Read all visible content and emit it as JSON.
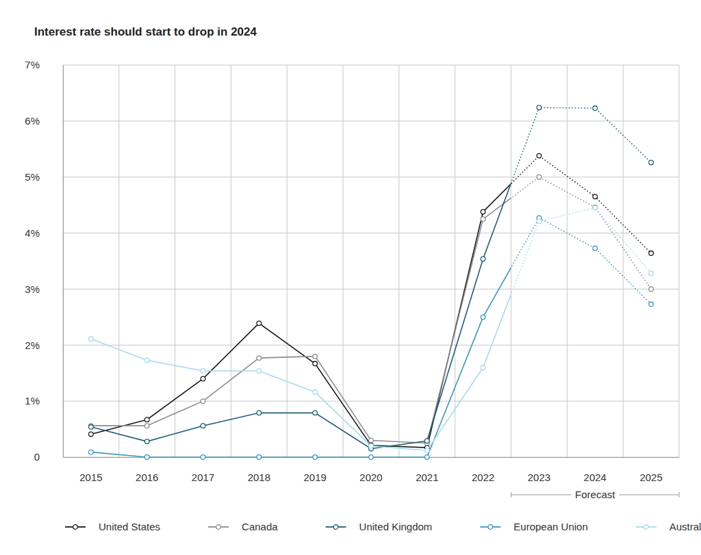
{
  "chart_data": {
    "type": "line",
    "title": "Interest rate should start to drop in 2024",
    "categories": [
      "2015",
      "2016",
      "2017",
      "2018",
      "2019",
      "2020",
      "2021",
      "2022",
      "2023",
      "2024",
      "2025"
    ],
    "series": [
      {
        "name": "United States",
        "color": "#1a1a1a",
        "marker": "circle",
        "line_style": "solid",
        "values": [
          0.41,
          0.67,
          1.4,
          2.39,
          1.67,
          0.21,
          0.17,
          4.38,
          5.38,
          4.65,
          3.64
        ]
      },
      {
        "name": "Canada",
        "color": "#8c8c8c",
        "marker": "circle",
        "line_style": "solid",
        "values": [
          0.56,
          0.56,
          1.0,
          1.77,
          1.8,
          0.3,
          0.25,
          4.25,
          5.0,
          4.46,
          3.0
        ]
      },
      {
        "name": "United Kingdom",
        "color": "#1d5f78",
        "marker": "circle",
        "line_style": "solid",
        "values": [
          0.54,
          0.28,
          0.56,
          0.79,
          0.79,
          0.15,
          0.29,
          3.54,
          6.24,
          6.23,
          5.26
        ]
      },
      {
        "name": "European Union",
        "color": "#3a98c0",
        "marker": "circle",
        "line_style": "solid",
        "values": [
          0.09,
          0,
          0,
          0,
          0,
          0,
          0,
          2.5,
          4.27,
          3.73,
          2.73
        ]
      },
      {
        "name": "Australia",
        "color": "#a9d9ec",
        "marker": "circle",
        "line_style": "solid",
        "values": [
          2.11,
          1.73,
          1.54,
          1.54,
          1.16,
          0.2,
          0.12,
          1.6,
          4.21,
          4.45,
          3.28
        ]
      }
    ],
    "ylim": [
      0,
      7
    ],
    "yticks": [
      0,
      {
        "value": 1,
        "label": "1%"
      },
      {
        "value": 2,
        "label": "2%"
      },
      {
        "value": 3,
        "label": "3%"
      },
      {
        "value": 4,
        "label": "4%"
      },
      {
        "value": 5,
        "label": "5%"
      },
      {
        "value": 6,
        "label": "6%"
      },
      {
        "value": 7,
        "label": "7%"
      }
    ],
    "grid": true,
    "legend": "bottom",
    "annotations": [
      {
        "text": "Forecast",
        "from": "2023",
        "to": "2025"
      }
    ]
  }
}
